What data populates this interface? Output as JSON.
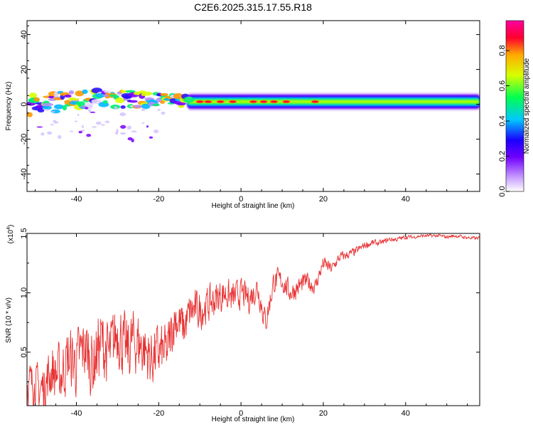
{
  "title": "C2E6.2025.315.17.55.R18",
  "chart_data": [
    {
      "type": "heatmap",
      "title": "C2E6.2025.315.17.55.R18",
      "xlabel": "Height of straight line (km)",
      "ylabel": "Frequency (Hz)",
      "xlim": [
        -52,
        58
      ],
      "ylim": [
        -50,
        48
      ],
      "xticks": [
        -40,
        -20,
        0,
        20,
        40
      ],
      "yticks": [
        -40,
        -20,
        0,
        20,
        40
      ],
      "colorbar": {
        "label": "Normalized spectral amplitude",
        "range": [
          0,
          0.97
        ],
        "ticks": [
          0.0,
          0.2,
          0.4,
          0.6,
          0.8
        ],
        "tick_labels": [
          "0.0",
          "0.2",
          "0.4",
          "0.6",
          "0.8"
        ],
        "colormap": [
          "#ffffff",
          "#8a00ff",
          "#2200ff",
          "#00ccff",
          "#00ff44",
          "#ccff00",
          "#ffaa00",
          "#ff0033",
          "#ff00aa"
        ]
      },
      "description_points": [
        {
          "x": -50,
          "band_center_hz": 0,
          "band_halfwidth_hz": 6
        },
        {
          "x": -40,
          "band_center_hz": 3,
          "band_halfwidth_hz": 5
        },
        {
          "x": -30,
          "band_center_hz": 3,
          "band_halfwidth_hz": 5
        },
        {
          "x": -20,
          "band_center_hz": 3,
          "band_halfwidth_hz": 4
        },
        {
          "x": -12,
          "band_center_hz": 1.5,
          "band_halfwidth_hz": 2.5
        },
        {
          "x": 0,
          "band_center_hz": 1.5,
          "band_halfwidth_hz": 2.5
        },
        {
          "x": 20,
          "band_center_hz": 1.5,
          "band_halfwidth_hz": 2.5
        },
        {
          "x": 40,
          "band_center_hz": 1.5,
          "band_halfwidth_hz": 2.5
        },
        {
          "x": 58,
          "band_center_hz": 1.5,
          "band_halfwidth_hz": 2.5
        }
      ]
    },
    {
      "type": "line",
      "xlabel": "Height of straight line (km)",
      "ylabel": "SNR (10 * v/v)",
      "yscale_note": "(x10",
      "yscale_exp": "4",
      "xlim": [
        -52,
        58
      ],
      "ylim": [
        0.05,
        1.5
      ],
      "xticks": [
        -40,
        -20,
        0,
        20,
        40
      ],
      "yticks": [
        0.5,
        1.0,
        1.5
      ],
      "ytick_labels": [
        "0.5",
        "1.0",
        "1.5"
      ],
      "color": "#e83232",
      "x": [
        -52,
        -50,
        -48,
        -46,
        -44,
        -42,
        -40,
        -38,
        -36,
        -34,
        -32,
        -30,
        -28,
        -26,
        -24,
        -22,
        -20,
        -18,
        -16,
        -14,
        -12,
        -10,
        -8,
        -6,
        -4,
        -2,
        0,
        2,
        4,
        6,
        8,
        10,
        12,
        14,
        16,
        18,
        20,
        22,
        24,
        26,
        28,
        30,
        32,
        34,
        36,
        38,
        40,
        42,
        44,
        46,
        48,
        50,
        52,
        54,
        56,
        58
      ],
      "y": [
        0.25,
        0.18,
        0.2,
        0.35,
        0.3,
        0.45,
        0.4,
        0.55,
        0.4,
        0.6,
        0.45,
        0.7,
        0.5,
        0.6,
        0.55,
        0.45,
        0.5,
        0.5,
        0.8,
        0.7,
        0.85,
        0.85,
        0.9,
        0.95,
        1.0,
        0.95,
        1.0,
        0.95,
        1.05,
        0.75,
        1.1,
        1.1,
        1.0,
        1.05,
        1.1,
        1.05,
        1.25,
        1.2,
        1.3,
        1.32,
        1.35,
        1.4,
        1.42,
        1.42,
        1.45,
        1.45,
        1.47,
        1.47,
        1.48,
        1.48,
        1.48,
        1.47,
        1.48,
        1.47,
        1.46,
        1.46
      ],
      "noise_amplitude": [
        0.25,
        0.28,
        0.3,
        0.32,
        0.35,
        0.35,
        0.38,
        0.4,
        0.4,
        0.4,
        0.4,
        0.38,
        0.38,
        0.38,
        0.36,
        0.33,
        0.32,
        0.3,
        0.28,
        0.26,
        0.24,
        0.22,
        0.2,
        0.2,
        0.18,
        0.18,
        0.16,
        0.16,
        0.15,
        0.15,
        0.14,
        0.13,
        0.12,
        0.12,
        0.1,
        0.09,
        0.08,
        0.07,
        0.06,
        0.05,
        0.05,
        0.04,
        0.04,
        0.03,
        0.03,
        0.03,
        0.025,
        0.02,
        0.02,
        0.02,
        0.02,
        0.02,
        0.02,
        0.02,
        0.02,
        0.02
      ]
    }
  ]
}
